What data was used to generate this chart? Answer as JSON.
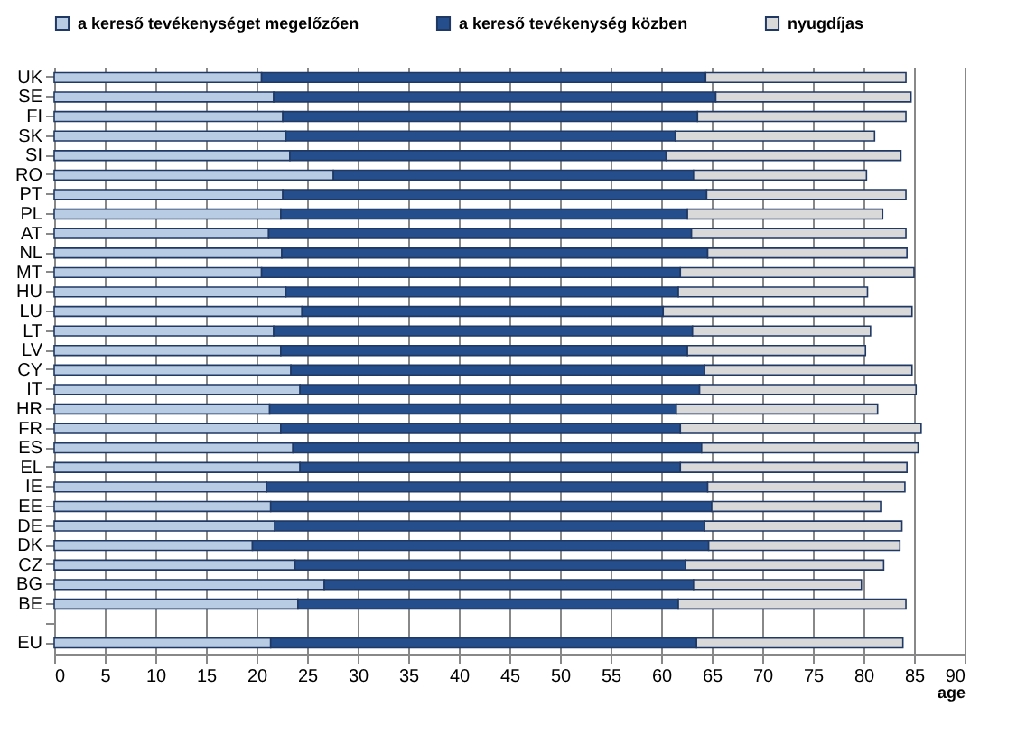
{
  "chart_data": {
    "type": "bar",
    "orientation": "horizontal",
    "stacked": true,
    "categories": [
      "UK",
      "SE",
      "FI",
      "SK",
      "SI",
      "RO",
      "PT",
      "PL",
      "AT",
      "NL",
      "MT",
      "HU",
      "LU",
      "LT",
      "LV",
      "CY",
      "IT",
      "HR",
      "FR",
      "ES",
      "EL",
      "IE",
      "EE",
      "DE",
      "DK",
      "CZ",
      "BG",
      "BE",
      null,
      "EU"
    ],
    "series": [
      {
        "name": "a kereső tevékenységet megelőzően",
        "color": "#b8cce4",
        "values": [
          20.5,
          21.7,
          22.6,
          22.9,
          23.3,
          27.6,
          22.6,
          22.4,
          21.2,
          22.5,
          20.5,
          22.9,
          24.5,
          21.7,
          22.4,
          23.4,
          24.3,
          21.3,
          22.4,
          23.6,
          24.3,
          21.0,
          21.4,
          21.8,
          19.6,
          23.8,
          26.7,
          24.1,
          null,
          21.4
        ]
      },
      {
        "name": "a kereső tevékenység közben",
        "color": "#254f8c",
        "values": [
          43.9,
          43.7,
          41.0,
          38.5,
          37.2,
          35.6,
          41.9,
          40.2,
          41.8,
          42.1,
          41.4,
          38.8,
          35.7,
          41.4,
          40.2,
          40.9,
          39.5,
          40.2,
          39.5,
          40.4,
          37.6,
          43.6,
          43.6,
          42.5,
          45.1,
          38.6,
          36.5,
          37.6,
          null,
          42.1
        ]
      },
      {
        "name": "nyugdíjas",
        "color": "#d9d9d9",
        "values": [
          19.8,
          19.3,
          20.6,
          19.7,
          23.2,
          17.1,
          19.7,
          19.3,
          21.2,
          19.7,
          23.1,
          18.7,
          24.6,
          17.6,
          17.6,
          20.5,
          21.4,
          19.9,
          23.8,
          21.4,
          22.4,
          19.5,
          16.7,
          19.5,
          18.9,
          19.6,
          16.6,
          22.5,
          null,
          20.4
        ]
      }
    ],
    "xlabel": "age",
    "xlim": [
      0,
      90
    ],
    "xticks": [
      0,
      5,
      10,
      15,
      20,
      25,
      30,
      35,
      40,
      45,
      50,
      55,
      60,
      65,
      70,
      75,
      80,
      85,
      90
    ],
    "grid": "x",
    "legend": "top"
  }
}
